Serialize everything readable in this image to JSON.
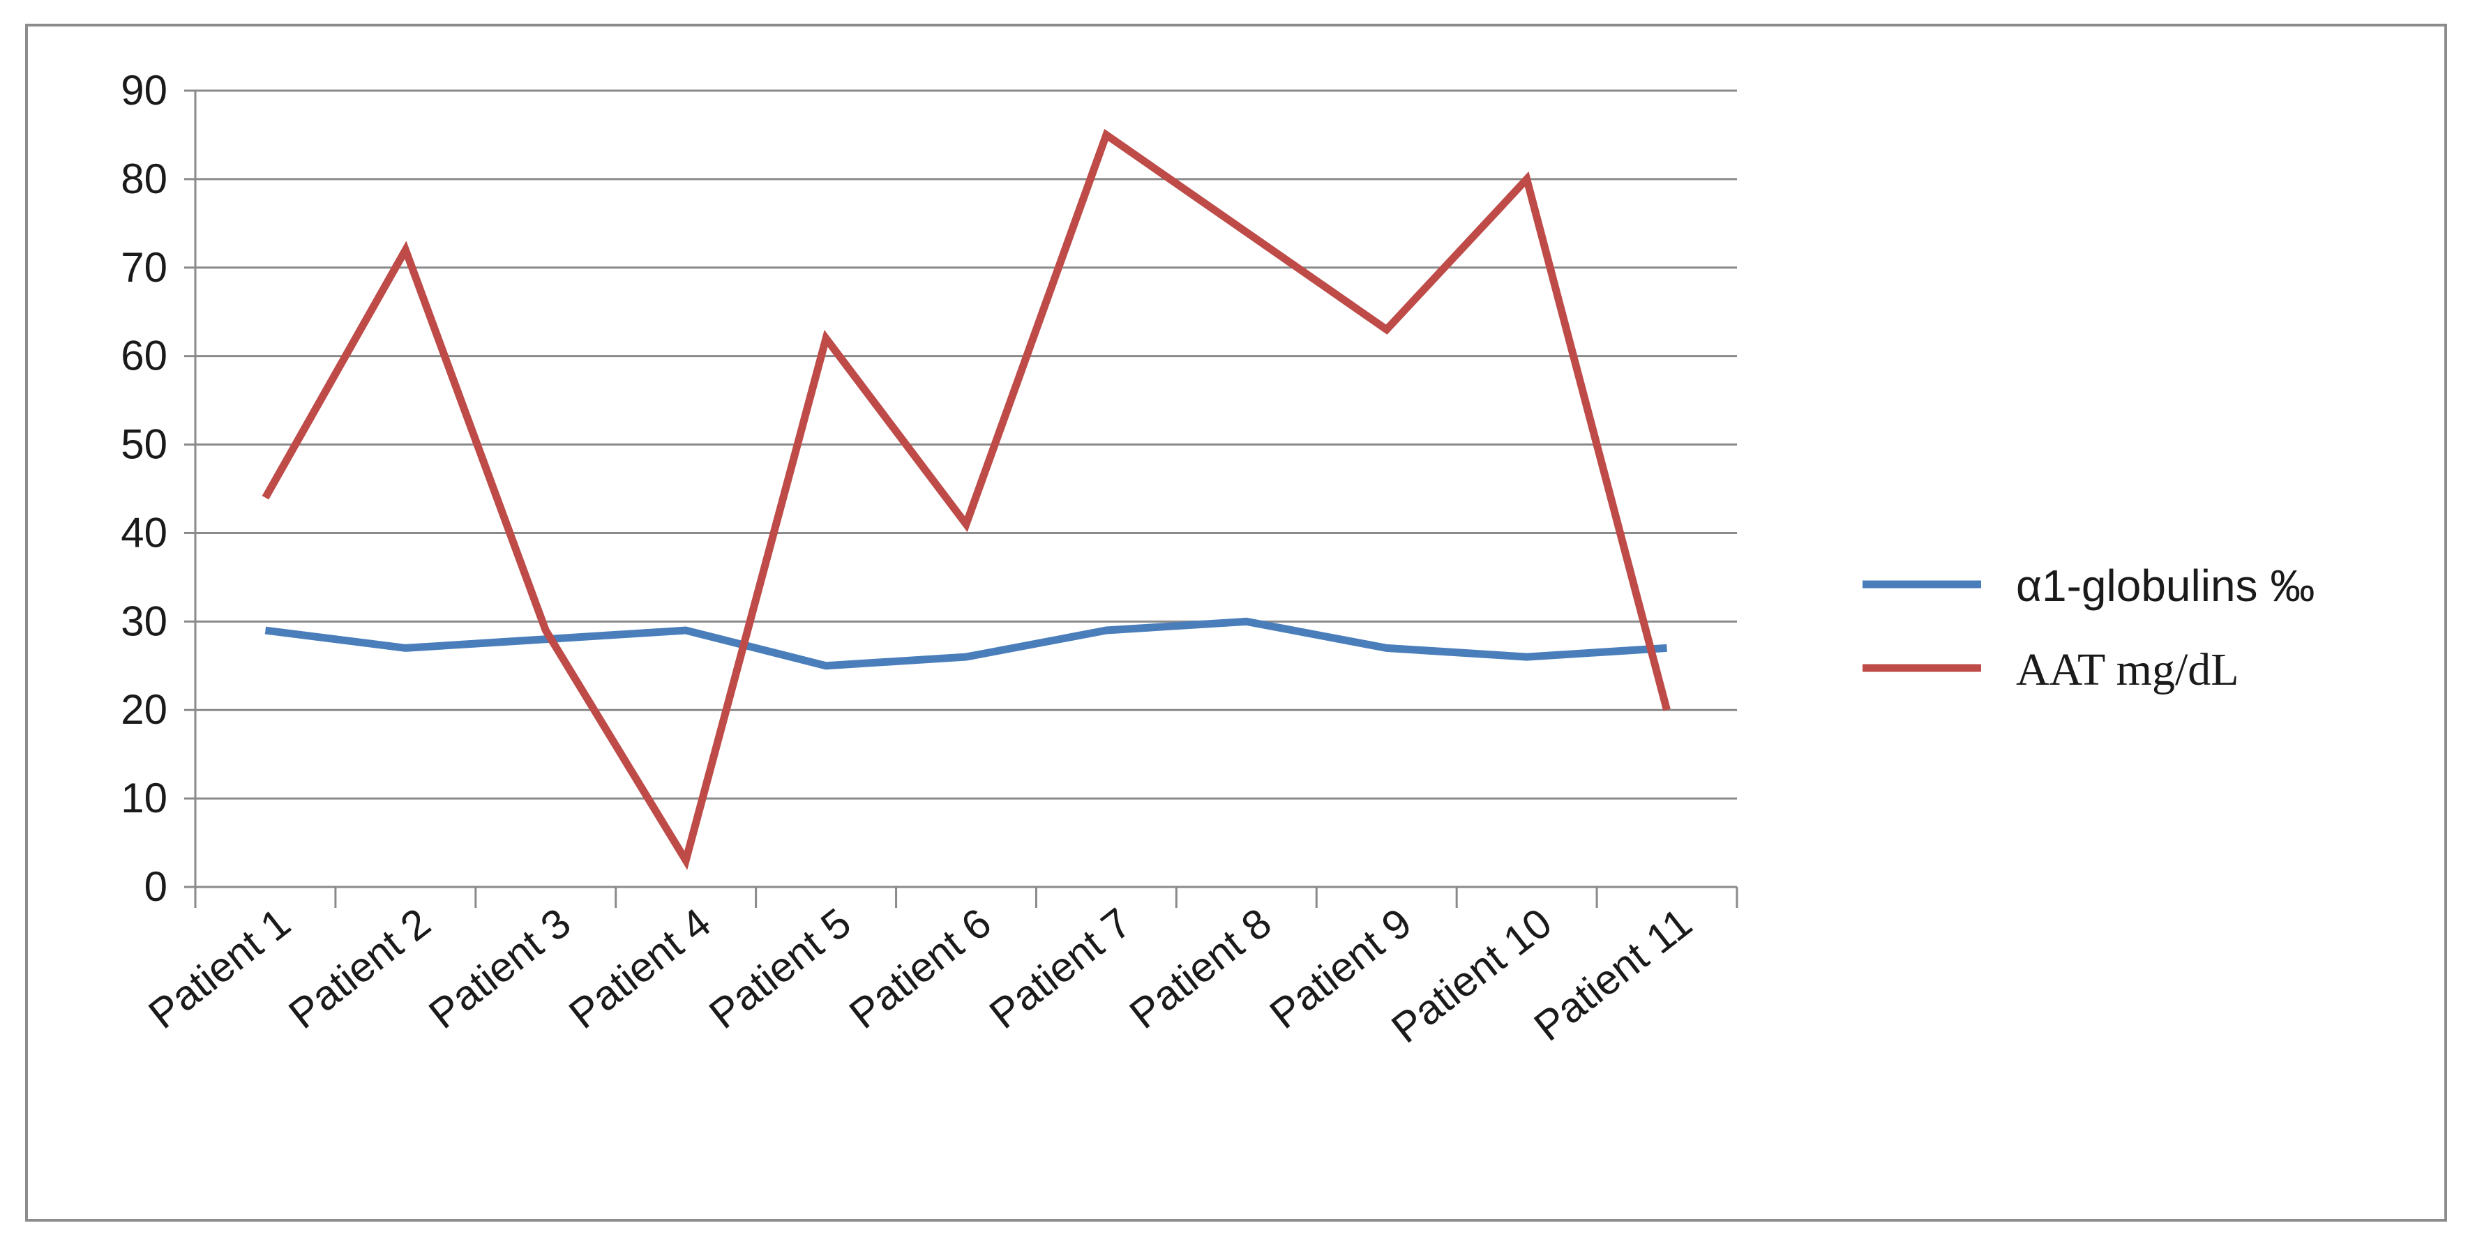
{
  "chart_data": {
    "type": "line",
    "title": "",
    "xlabel": "",
    "ylabel": "",
    "ylim": [
      0,
      90
    ],
    "yticks": [
      0,
      10,
      20,
      30,
      40,
      50,
      60,
      70,
      80,
      90
    ],
    "grid": true,
    "legend_position": "right",
    "categories": [
      "Patient 1",
      "Patient 2",
      "Patient 3",
      "Patient 4",
      "Patient 5",
      "Patient 6",
      "Patient 7",
      "Patient 8",
      "Patient 9",
      "Patient 10",
      "Patient 11"
    ],
    "series": [
      {
        "name": "α1-globulins  ‰",
        "color": "#4a7ebb",
        "values": [
          29,
          27,
          28,
          29,
          25,
          26,
          29,
          30,
          27,
          26,
          27
        ]
      },
      {
        "name": "AAT mg/dL",
        "color": "#be4b48",
        "values": [
          44,
          72,
          29,
          3,
          62,
          41,
          85,
          74,
          63,
          80,
          20
        ]
      }
    ]
  }
}
